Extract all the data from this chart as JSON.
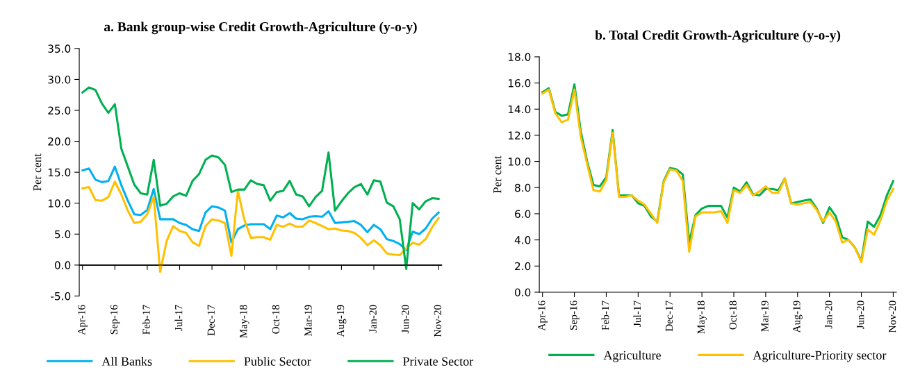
{
  "chart_data": [
    {
      "type": "line",
      "title": "a. Bank group-wise Credit Growth-Agriculture (y-o-y)",
      "ylabel": "Per cent",
      "categories": [
        "Apr-16",
        null,
        null,
        null,
        null,
        "Sep-16",
        null,
        null,
        null,
        null,
        "Feb-17",
        null,
        null,
        null,
        null,
        "Jul-17",
        null,
        null,
        null,
        null,
        "Dec-17",
        null,
        null,
        null,
        null,
        "May-18",
        null,
        null,
        null,
        null,
        "Oct-18",
        null,
        null,
        null,
        null,
        "Mar-19",
        null,
        null,
        null,
        null,
        "Aug-19",
        null,
        null,
        null,
        null,
        "Jan-20",
        null,
        null,
        null,
        null,
        "Jun-20",
        null,
        null,
        null,
        null,
        "Nov-20"
      ],
      "ylim": [
        -5,
        35
      ],
      "ref_lines": [
        {
          "axis": "y",
          "value": 0,
          "color": "#000000"
        }
      ],
      "yticks": [
        {
          "value": -5,
          "label": "-5.0"
        },
        {
          "value": 0,
          "label": "0.0"
        },
        {
          "value": 5,
          "label": "5.0"
        },
        {
          "value": 10,
          "label": "10.0"
        },
        {
          "value": 15,
          "label": "15.0"
        },
        {
          "value": 20,
          "label": "20.0"
        },
        {
          "value": 25,
          "label": "25.0"
        },
        {
          "value": 30,
          "label": "30.0"
        },
        {
          "value": 35,
          "label": "35.0"
        }
      ],
      "legend": "bottom",
      "grid": false,
      "marker": "none",
      "line_style": "solid",
      "series": [
        {
          "name": "All Banks",
          "color": "#00b0f0",
          "values": [
            15.3,
            15.6,
            13.8,
            13.4,
            13.6,
            15.9,
            12.9,
            10.4,
            8.2,
            8.1,
            8.9,
            12.3,
            7.4,
            7.4,
            7.4,
            6.8,
            6.5,
            5.8,
            5.5,
            8.5,
            9.5,
            9.3,
            8.8,
            3.7,
            5.8,
            6.4,
            6.6,
            6.6,
            6.6,
            5.8,
            8.0,
            7.7,
            8.4,
            7.5,
            7.4,
            7.8,
            7.9,
            7.8,
            8.7,
            6.8,
            6.9,
            7.0,
            7.1,
            6.5,
            5.3,
            6.5,
            5.8,
            4.2,
            3.9,
            3.4,
            2.4,
            5.4,
            5.0,
            5.9,
            7.5,
            8.5
          ]
        },
        {
          "name": "Public Sector",
          "color": "#ffc000",
          "values": [
            12.4,
            12.6,
            10.5,
            10.4,
            11.0,
            13.5,
            11.4,
            8.8,
            6.8,
            7.0,
            8.2,
            11.0,
            -1.1,
            3.9,
            6.3,
            5.5,
            5.2,
            3.7,
            3.1,
            6.3,
            7.4,
            7.2,
            6.8,
            1.5,
            12.0,
            7.3,
            4.4,
            4.5,
            4.5,
            4.1,
            6.5,
            6.2,
            6.7,
            6.2,
            6.2,
            7.2,
            6.8,
            6.3,
            5.8,
            5.9,
            5.6,
            5.5,
            5.2,
            4.4,
            3.2,
            4.0,
            3.2,
            1.9,
            1.7,
            1.6,
            2.7,
            3.6,
            3.3,
            4.2,
            6.1,
            7.6
          ]
        },
        {
          "name": "Private Sector",
          "color": "#00b050",
          "values": [
            27.9,
            28.7,
            28.3,
            26.1,
            24.6,
            26.0,
            18.8,
            15.9,
            13.0,
            11.6,
            11.4,
            17.0,
            9.6,
            9.9,
            11.1,
            11.6,
            11.2,
            13.6,
            14.7,
            17.0,
            17.7,
            17.4,
            16.2,
            11.8,
            12.2,
            12.2,
            13.7,
            13.1,
            12.9,
            10.4,
            11.8,
            12.0,
            13.6,
            11.4,
            11.1,
            9.5,
            11.0,
            12.0,
            18.2,
            8.8,
            10.3,
            11.6,
            12.6,
            13.1,
            11.4,
            13.7,
            13.5,
            10.1,
            9.5,
            7.4,
            -0.6,
            10.0,
            9.0,
            10.3,
            10.8,
            10.7
          ]
        }
      ]
    },
    {
      "type": "line",
      "title": "b. Total Credit Growth-Agriculture (y-o-y)",
      "ylabel": "Per cent",
      "categories": [
        "Apr-16",
        null,
        null,
        null,
        null,
        "Sep-16",
        null,
        null,
        null,
        null,
        "Feb-17",
        null,
        null,
        null,
        null,
        "Jul-17",
        null,
        null,
        null,
        null,
        "Dec-17",
        null,
        null,
        null,
        null,
        "May-18",
        null,
        null,
        null,
        null,
        "Oct-18",
        null,
        null,
        null,
        null,
        "Mar-19",
        null,
        null,
        null,
        null,
        "Aug-19",
        null,
        null,
        null,
        null,
        "Jan-20",
        null,
        null,
        null,
        null,
        "Jun-20",
        null,
        null,
        null,
        null,
        "Nov-20"
      ],
      "ylim": [
        0,
        18
      ],
      "yticks": [
        {
          "value": 0,
          "label": "0.0"
        },
        {
          "value": 2,
          "label": "2.0"
        },
        {
          "value": 4,
          "label": "4.0"
        },
        {
          "value": 6,
          "label": "6.0"
        },
        {
          "value": 8,
          "label": "8.0"
        },
        {
          "value": 10,
          "label": "10.0"
        },
        {
          "value": 12,
          "label": "12.0"
        },
        {
          "value": 14,
          "label": "14.0"
        },
        {
          "value": 16,
          "label": "16.0"
        },
        {
          "value": 18,
          "label": "18.0"
        }
      ],
      "legend": "bottom",
      "grid": false,
      "marker": "none",
      "line_style": "solid",
      "series": [
        {
          "name": "Agriculture",
          "color": "#00b050",
          "values": [
            15.3,
            15.6,
            13.8,
            13.5,
            13.6,
            15.9,
            12.3,
            10.0,
            8.2,
            8.1,
            8.8,
            12.4,
            7.4,
            7.4,
            7.4,
            6.8,
            6.6,
            5.8,
            5.4,
            8.5,
            9.5,
            9.4,
            9.0,
            3.8,
            5.9,
            6.4,
            6.6,
            6.6,
            6.6,
            5.7,
            8.0,
            7.7,
            8.4,
            7.5,
            7.4,
            7.9,
            7.9,
            7.8,
            8.7,
            6.8,
            6.9,
            7.0,
            7.1,
            6.4,
            5.3,
            6.5,
            5.8,
            4.2,
            4.0,
            3.4,
            2.4,
            5.4,
            5.0,
            5.9,
            7.4,
            8.5
          ]
        },
        {
          "name": "Agriculture-Priority sector",
          "color": "#ffc000",
          "values": [
            15.2,
            15.5,
            13.7,
            13.0,
            13.2,
            15.5,
            11.9,
            9.8,
            7.8,
            7.7,
            8.6,
            12.2,
            7.3,
            7.3,
            7.4,
            7.0,
            6.7,
            6.0,
            5.3,
            8.4,
            9.4,
            9.3,
            8.5,
            3.1,
            5.8,
            6.1,
            6.1,
            6.1,
            6.2,
            5.3,
            7.8,
            7.6,
            8.2,
            7.4,
            7.7,
            8.1,
            7.6,
            7.6,
            8.7,
            6.8,
            6.7,
            6.8,
            6.9,
            6.3,
            5.4,
            6.1,
            5.4,
            3.8,
            4.0,
            3.4,
            2.3,
            4.8,
            4.4,
            5.5,
            7.0,
            7.9
          ]
        }
      ]
    }
  ]
}
